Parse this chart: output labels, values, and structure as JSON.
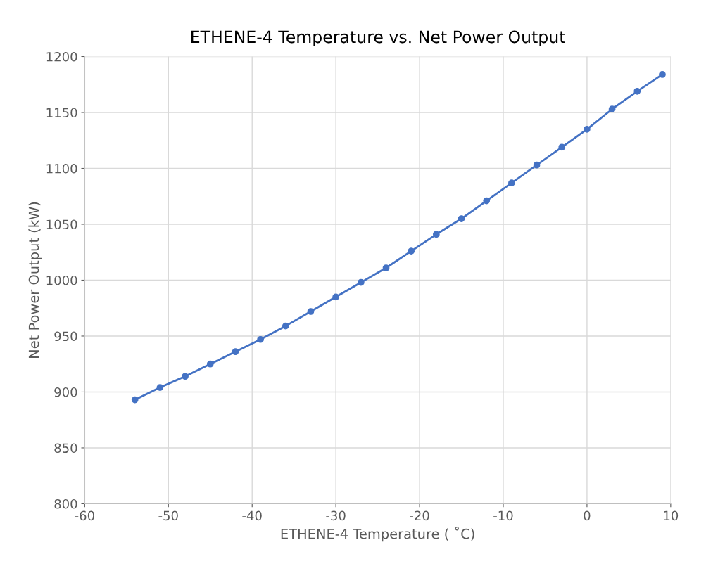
{
  "chart_data": {
    "type": "line",
    "title": "ETHENE-4 Temperature vs. Net Power Output",
    "xlabel": "ETHENE-4 Temperature ( ˚C)",
    "ylabel": "Net Power Output (kW)",
    "x": [
      -54,
      -51,
      -48,
      -45,
      -42,
      -39,
      -36,
      -33,
      -30,
      -27,
      -24,
      -21,
      -18,
      -15,
      -12,
      -9,
      -6,
      -3,
      0,
      3,
      6,
      9
    ],
    "series": [
      {
        "color": "#4472c4",
        "values": [
          893,
          904,
          914,
          925,
          936,
          947,
          959,
          972,
          985,
          998,
          1011,
          1026,
          1041,
          1055,
          1071,
          1087,
          1103,
          1119,
          1135,
          1153,
          1169,
          1184
        ]
      }
    ],
    "xlim": [
      -60,
      10
    ],
    "xticks": [
      -60,
      -50,
      -40,
      -30,
      -20,
      -10,
      0,
      10
    ],
    "ylim": [
      800,
      1200
    ],
    "yticks": [
      800,
      850,
      900,
      950,
      1000,
      1050,
      1100,
      1150,
      1200
    ],
    "grid": true,
    "marker": "circle",
    "line_style": "solid",
    "legend": false
  }
}
